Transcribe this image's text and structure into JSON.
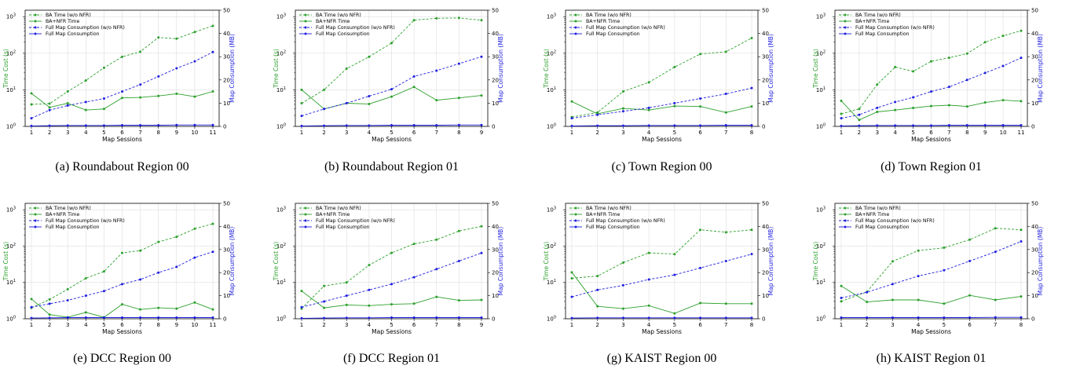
{
  "colors": {
    "green": "#2ca02c",
    "blue": "#1f1fe0"
  },
  "chart_data": [
    {
      "type": "line",
      "caption": "(a) Roundabout Region 00",
      "xlabel": "Map Sessions",
      "ylabel_left": "Time Cost (s)",
      "ylabel_right": "Map Consumption (MB)",
      "left_scale": "log",
      "ylim_left": [
        1,
        1500
      ],
      "ylim_right": [
        0,
        50
      ],
      "grid": true,
      "legend": "top-left",
      "x": [
        1,
        2,
        3,
        4,
        5,
        6,
        7,
        8,
        9,
        10,
        11
      ],
      "series": [
        {
          "name": "BA Time (w/o NFR)",
          "axis": "left",
          "style": "dashed",
          "color": "green",
          "values": [
            4.0,
            4.2,
            9,
            18,
            40,
            80,
            110,
            270,
            250,
            380,
            560
          ]
        },
        {
          "name": "BA+NFR Time",
          "axis": "left",
          "style": "solid",
          "color": "green",
          "values": [
            8.0,
            3.3,
            4.3,
            2.8,
            3.0,
            6.0,
            6.2,
            6.8,
            7.8,
            6.5,
            9.0
          ]
        },
        {
          "name": "Full Map Consumption (w/o NFR)",
          "axis": "right",
          "style": "dashed",
          "color": "blue",
          "values": [
            3.5,
            7,
            9,
            10.5,
            12,
            15,
            18,
            21.5,
            25,
            28,
            32
          ]
        },
        {
          "name": "Full Map Consumption",
          "axis": "right",
          "style": "solid",
          "color": "blue",
          "values": [
            0.2,
            0.3,
            0.4,
            0.4,
            0.4,
            0.5,
            0.5,
            0.5,
            0.6,
            0.6,
            0.6
          ]
        }
      ]
    },
    {
      "type": "line",
      "caption": "(b) Roundabout Region 01",
      "xlabel": "Map Sessions",
      "ylabel_left": "Time Cost (s)",
      "ylabel_right": "Map Consumption (MB)",
      "left_scale": "log",
      "ylim_left": [
        1,
        1500
      ],
      "ylim_right": [
        0,
        50
      ],
      "grid": true,
      "legend": "top-left",
      "x": [
        1,
        2,
        3,
        4,
        5,
        6,
        7,
        8,
        9
      ],
      "series": [
        {
          "name": "BA Time (w/o NFR)",
          "axis": "left",
          "style": "dashed",
          "color": "green",
          "values": [
            4.3,
            10,
            38,
            80,
            190,
            800,
            900,
            920,
            800
          ]
        },
        {
          "name": "BA+NFR Time",
          "axis": "left",
          "style": "solid",
          "color": "green",
          "values": [
            10,
            3,
            4.3,
            4.1,
            6.5,
            12,
            5.2,
            6,
            7
          ]
        },
        {
          "name": "Full Map Consumption (w/o NFR)",
          "axis": "right",
          "style": "dashed",
          "color": "blue",
          "values": [
            4.5,
            7.5,
            10,
            13,
            16,
            21.5,
            24,
            27,
            30
          ]
        },
        {
          "name": "Full Map Consumption",
          "axis": "right",
          "style": "solid",
          "color": "blue",
          "values": [
            0.2,
            0.3,
            0.4,
            0.4,
            0.5,
            0.5,
            0.5,
            0.6,
            0.6
          ]
        }
      ]
    },
    {
      "type": "line",
      "caption": "(c) Town Region 00",
      "xlabel": "Map Sessions",
      "ylabel_left": "Time Cost (s)",
      "ylabel_right": "Map Consumption (MB)",
      "left_scale": "log",
      "ylim_left": [
        1,
        1500
      ],
      "ylim_right": [
        0,
        50
      ],
      "grid": true,
      "legend": "top-left",
      "x": [
        1,
        2,
        3,
        4,
        5,
        6,
        7,
        8
      ],
      "series": [
        {
          "name": "BA Time (w/o NFR)",
          "axis": "left",
          "style": "dashed",
          "color": "green",
          "values": [
            1.8,
            2.4,
            9,
            16,
            42,
            95,
            110,
            260
          ]
        },
        {
          "name": "BA+NFR Time",
          "axis": "left",
          "style": "solid",
          "color": "green",
          "values": [
            4.8,
            2.2,
            3.1,
            2.8,
            3.6,
            3.5,
            2.4,
            3.5
          ]
        },
        {
          "name": "Full Map Consumption (w/o NFR)",
          "axis": "right",
          "style": "dashed",
          "color": "blue",
          "values": [
            3.5,
            5,
            6.5,
            8,
            10,
            12,
            14,
            16.5
          ]
        },
        {
          "name": "Full Map Consumption",
          "axis": "right",
          "style": "solid",
          "color": "blue",
          "values": [
            0.2,
            0.3,
            0.3,
            0.4,
            0.4,
            0.4,
            0.5,
            0.5
          ]
        }
      ]
    },
    {
      "type": "line",
      "caption": "(d) Town Region 01",
      "xlabel": "Map Sessions",
      "ylabel_left": "Time Cost (s)",
      "ylabel_right": "Map Consumption (MB)",
      "left_scale": "log",
      "ylim_left": [
        1,
        1500
      ],
      "ylim_right": [
        0,
        50
      ],
      "grid": true,
      "legend": "top-left",
      "x": [
        1,
        2,
        3,
        4,
        5,
        6,
        7,
        8,
        9,
        10,
        11
      ],
      "series": [
        {
          "name": "BA Time (w/o NFR)",
          "axis": "left",
          "style": "dashed",
          "color": "green",
          "values": [
            2.2,
            3,
            14,
            42,
            32,
            60,
            75,
            98,
            200,
            300,
            410
          ]
        },
        {
          "name": "BA+NFR Time",
          "axis": "left",
          "style": "solid",
          "color": "green",
          "values": [
            5.0,
            1.5,
            2.5,
            2.8,
            3.2,
            3.6,
            3.8,
            3.5,
            4.5,
            5.2,
            4.9
          ]
        },
        {
          "name": "Full Map Consumption (w/o NFR)",
          "axis": "right",
          "style": "dashed",
          "color": "blue",
          "values": [
            3.5,
            5,
            8,
            10.5,
            12.5,
            15,
            17,
            20,
            23,
            26,
            29.5
          ]
        },
        {
          "name": "Full Map Consumption",
          "axis": "right",
          "style": "solid",
          "color": "blue",
          "values": [
            0.2,
            0.3,
            0.4,
            0.4,
            0.4,
            0.4,
            0.5,
            0.5,
            0.5,
            0.5,
            0.5
          ]
        }
      ]
    },
    {
      "type": "line",
      "caption": "(e) DCC Region 00",
      "xlabel": "Map Sessions",
      "ylabel_left": "Time Cost (s)",
      "ylabel_right": "Map Consumption (MB)",
      "left_scale": "log",
      "ylim_left": [
        1,
        1500
      ],
      "ylim_right": [
        0,
        50
      ],
      "grid": true,
      "legend": "top-left",
      "x": [
        1,
        2,
        3,
        4,
        5,
        6,
        7,
        8,
        9,
        10,
        11
      ],
      "series": [
        {
          "name": "BA Time (w/o NFR)",
          "axis": "left",
          "style": "dashed",
          "color": "green",
          "values": [
            2.0,
            3.4,
            6.5,
            13,
            20,
            65,
            75,
            130,
            180,
            300,
            410
          ]
        },
        {
          "name": "BA+NFR Time",
          "axis": "left",
          "style": "solid",
          "color": "green",
          "values": [
            3.5,
            1.3,
            1.1,
            1.5,
            1.1,
            2.5,
            1.8,
            2.0,
            1.9,
            2.8,
            1.8
          ]
        },
        {
          "name": "Full Map Consumption (w/o NFR)",
          "axis": "right",
          "style": "dashed",
          "color": "blue",
          "values": [
            5,
            6.5,
            8,
            10,
            12,
            15,
            17,
            20,
            22.5,
            26.5,
            29
          ]
        },
        {
          "name": "Full Map Consumption",
          "axis": "right",
          "style": "solid",
          "color": "blue",
          "values": [
            0.3,
            0.4,
            0.5,
            0.5,
            0.5,
            0.5,
            0.5,
            0.5,
            0.5,
            0.5,
            0.5
          ]
        }
      ]
    },
    {
      "type": "line",
      "caption": "(f) DCC Region 01",
      "xlabel": "Map Sessions",
      "ylabel_left": "Time Cost (s)",
      "ylabel_right": "Map Consumption (MB)",
      "left_scale": "log",
      "ylim_left": [
        1,
        1500
      ],
      "ylim_right": [
        0,
        50
      ],
      "grid": true,
      "legend": "top-left",
      "x": [
        1,
        2,
        3,
        4,
        5,
        6,
        7,
        8,
        9
      ],
      "series": [
        {
          "name": "BA Time (w/o NFR)",
          "axis": "left",
          "style": "dashed",
          "color": "green",
          "values": [
            1.9,
            8,
            10,
            30,
            65,
            115,
            150,
            260,
            350
          ]
        },
        {
          "name": "BA+NFR Time",
          "axis": "left",
          "style": "solid",
          "color": "green",
          "values": [
            5.8,
            2.0,
            2.4,
            2.3,
            2.5,
            2.6,
            4.0,
            3.2,
            3.3
          ]
        },
        {
          "name": "Full Map Consumption (w/o NFR)",
          "axis": "right",
          "style": "dashed",
          "color": "blue",
          "values": [
            5,
            7.5,
            10,
            12.5,
            15,
            18,
            21.5,
            25,
            28.5
          ]
        },
        {
          "name": "Full Map Consumption",
          "axis": "right",
          "style": "solid",
          "color": "blue",
          "values": [
            0.2,
            0.3,
            0.4,
            0.4,
            0.5,
            0.5,
            0.5,
            0.5,
            0.5
          ]
        }
      ]
    },
    {
      "type": "line",
      "caption": "(g) KAIST Region 00",
      "xlabel": "Map Sessions",
      "ylabel_left": "Time Cost (s)",
      "ylabel_right": "Map Consumption (MB)",
      "left_scale": "log",
      "ylim_left": [
        1,
        1500
      ],
      "ylim_right": [
        0,
        50
      ],
      "grid": true,
      "legend": "top-left",
      "x": [
        1,
        2,
        3,
        4,
        5,
        6,
        7,
        8
      ],
      "series": [
        {
          "name": "BA Time (w/o NFR)",
          "axis": "left",
          "style": "dashed",
          "color": "green",
          "values": [
            13,
            15,
            35,
            65,
            60,
            280,
            240,
            280
          ]
        },
        {
          "name": "BA+NFR Time",
          "axis": "left",
          "style": "solid",
          "color": "green",
          "values": [
            19,
            2.2,
            1.9,
            2.3,
            1.4,
            2.7,
            2.6,
            2.6
          ]
        },
        {
          "name": "Full Map Consumption (w/o NFR)",
          "axis": "right",
          "style": "dashed",
          "color": "blue",
          "values": [
            9.5,
            12.5,
            14.5,
            17,
            19,
            22,
            25,
            28
          ]
        },
        {
          "name": "Full Map Consumption",
          "axis": "right",
          "style": "solid",
          "color": "blue",
          "values": [
            0.3,
            0.4,
            0.4,
            0.4,
            0.4,
            0.4,
            0.4,
            0.4
          ]
        }
      ]
    },
    {
      "type": "line",
      "caption": "(h) KAIST Region 01",
      "xlabel": "Map Sessions",
      "ylabel_left": "Time Cost (s)",
      "ylabel_right": "Map Consumption (MB)",
      "left_scale": "log",
      "ylim_left": [
        1,
        1500
      ],
      "ylim_right": [
        0,
        50
      ],
      "grid": true,
      "legend": "top-left",
      "x": [
        1,
        2,
        3,
        4,
        5,
        6,
        7,
        8
      ],
      "series": [
        {
          "name": "BA Time (w/o NFR)",
          "axis": "left",
          "style": "dashed",
          "color": "green",
          "values": [
            3,
            5.5,
            38,
            75,
            90,
            150,
            310,
            280
          ]
        },
        {
          "name": "BA+NFR Time",
          "axis": "left",
          "style": "solid",
          "color": "green",
          "values": [
            8,
            2.9,
            3.3,
            3.3,
            2.6,
            4.4,
            3.3,
            4.1
          ]
        },
        {
          "name": "Full Map Consumption (w/o NFR)",
          "axis": "right",
          "style": "dashed",
          "color": "blue",
          "values": [
            9,
            11.5,
            15,
            18.5,
            21,
            25,
            29,
            33.5
          ]
        },
        {
          "name": "Full Map Consumption",
          "axis": "right",
          "style": "solid",
          "color": "blue",
          "values": [
            0.5,
            0.5,
            0.5,
            0.5,
            0.5,
            0.5,
            0.6,
            0.6
          ]
        }
      ]
    }
  ]
}
